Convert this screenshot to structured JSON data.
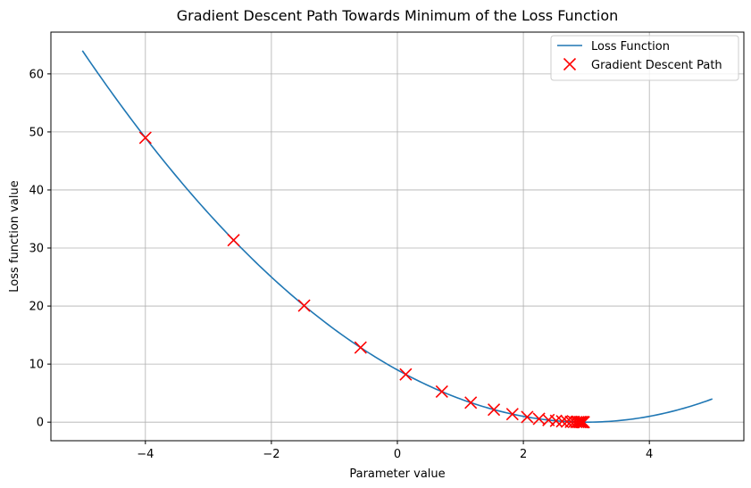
{
  "chart_data": {
    "type": "line",
    "title": "Gradient Descent Path Towards Minimum of the Loss Function",
    "xlabel": "Parameter value",
    "ylabel": "Loss function value",
    "xlim": [
      -5.5,
      5.5
    ],
    "ylim": [
      -3.2,
      67.2
    ],
    "xticks": [
      -4,
      -2,
      0,
      2,
      4
    ],
    "yticks": [
      0,
      10,
      20,
      30,
      40,
      50,
      60
    ],
    "grid": true,
    "legend_position": "top-right",
    "series": [
      {
        "name": "Loss Function",
        "kind": "line",
        "color": "#1f77b4",
        "function": "(x - 3)^2",
        "x_range": [
          -5,
          5
        ]
      },
      {
        "name": "Gradient Descent Path",
        "kind": "scatter",
        "marker": "x",
        "color": "#ff0000",
        "x": [
          -4.0,
          -2.6,
          -1.48,
          -0.584,
          0.133,
          0.706,
          1.165,
          1.532,
          1.826,
          2.061,
          2.248,
          2.399,
          2.519,
          2.615,
          2.692,
          2.754,
          2.803,
          2.842,
          2.874,
          2.899,
          2.919,
          2.935,
          2.948,
          2.959
        ],
        "y": [
          49.0,
          31.36,
          20.07,
          12.85,
          8.22,
          5.26,
          3.37,
          2.15,
          1.38,
          0.88,
          0.57,
          0.36,
          0.23,
          0.15,
          0.09,
          0.06,
          0.04,
          0.02,
          0.02,
          0.01,
          0.01,
          0.0,
          0.0,
          0.0
        ]
      }
    ]
  }
}
